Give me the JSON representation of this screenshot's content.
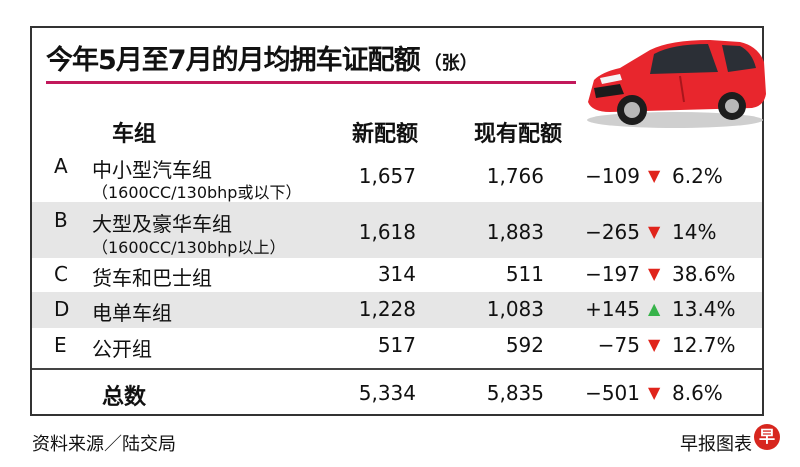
{
  "chart_data": {
    "type": "table",
    "title": "今年5月至7月的月均拥车证配额",
    "unit": "（张）",
    "columns": [
      "车组",
      "新配额",
      "现有配额"
    ],
    "rows": [
      {
        "letter": "A",
        "name": "中小型汽车组",
        "sub": "（1600CC/130bhp或以下）",
        "new": "1,657",
        "current": "1,766",
        "diff": "−109",
        "direction": "down",
        "pct": "6.2%"
      },
      {
        "letter": "B",
        "name": "大型及豪华车组",
        "sub": "（1600CC/130bhp以上）",
        "new": "1,618",
        "current": "1,883",
        "diff": "−265",
        "direction": "down",
        "pct": "14%"
      },
      {
        "letter": "C",
        "name": "货车和巴士组",
        "sub": "",
        "new": "314",
        "current": "511",
        "diff": "−197",
        "direction": "down",
        "pct": "38.6%"
      },
      {
        "letter": "D",
        "name": "电单车组",
        "sub": "",
        "new": "1,228",
        "current": "1,083",
        "diff": "+145",
        "direction": "up",
        "pct": "13.4%"
      },
      {
        "letter": "E",
        "name": "公开组",
        "sub": "",
        "new": "517",
        "current": "592",
        "diff": "−75",
        "direction": "down",
        "pct": "12.7%"
      }
    ],
    "total": {
      "label": "总数",
      "new": "5,334",
      "current": "5,835",
      "diff": "−501",
      "direction": "down",
      "pct": "8.6%"
    }
  },
  "footer": {
    "source": "资料来源／陆交局",
    "credit": "早报图表",
    "logo_char": "早"
  },
  "colors": {
    "down": "#e0241b",
    "up": "#37b34a",
    "title_line": "#c2185b",
    "car_body": "#e8262d"
  },
  "icons": {
    "down": "down-triangle-icon",
    "up": "up-triangle-icon",
    "car": "red-hatchback-car-icon"
  }
}
